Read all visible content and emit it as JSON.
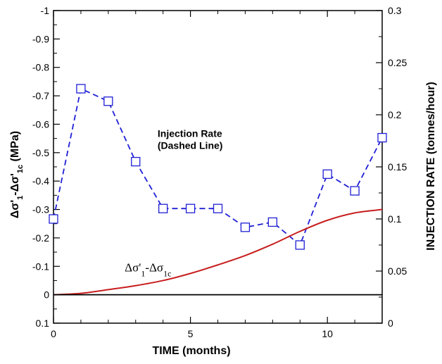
{
  "chart_data": {
    "type": "line",
    "x_axis": {
      "label": "TIME (months)",
      "range": [
        0,
        12
      ],
      "ticks": [
        0,
        5,
        10
      ],
      "tick_labels": [
        "0",
        "5",
        "10"
      ],
      "minor_ticks": [
        1,
        2,
        3,
        4,
        6,
        7,
        8,
        9,
        11
      ]
    },
    "y_left_axis": {
      "label_parts": [
        {
          "text": "Δσ'",
          "sub": "",
          "sup": ""
        },
        {
          "text": "",
          "sub": "1",
          "sup": ""
        },
        {
          "text": "-Δσ'",
          "sub": "",
          "sup": ""
        },
        {
          "text": "",
          "sub": "1c",
          "sup": ""
        },
        {
          "text": " (MPa)",
          "sub": "",
          "sup": ""
        }
      ],
      "range": [
        0.1,
        -1
      ],
      "reversed": true,
      "ticks": [
        0.1,
        0,
        -0.1,
        -0.2,
        -0.3,
        -0.4,
        -0.5,
        -0.6,
        -0.7,
        -0.8,
        -0.9,
        -1
      ],
      "tick_labels": [
        "0.1",
        "0",
        "-0.1",
        "-0.2",
        "-0.3",
        "-0.4",
        "-0.5",
        "-0.6",
        "-0.7",
        "-0.8",
        "-0.9",
        "-1"
      ]
    },
    "y_right_axis": {
      "label": "INJECTION RATE (tonnes/hour)",
      "range": [
        0,
        0.3
      ],
      "ticks": [
        0,
        0.05,
        0.1,
        0.15,
        0.2,
        0.25,
        0.3
      ],
      "tick_labels": [
        "0",
        "0.05",
        "0.1",
        "0.15",
        "0.2",
        "0.25",
        "0.3"
      ]
    },
    "series": [
      {
        "axis": "right",
        "style": "dashed-square-markers",
        "color": "#1f1fd6",
        "x": [
          0,
          1,
          2,
          3,
          4,
          5,
          6,
          7,
          8,
          9,
          10,
          11,
          12
        ],
        "y": [
          0.1,
          0.225,
          0.213,
          0.155,
          0.11,
          0.11,
          0.11,
          0.092,
          0.097,
          0.075,
          0.143,
          0.127,
          0.178
        ]
      },
      {
        "axis": "left",
        "style": "solid",
        "color": "#c81e1e",
        "x": [
          0,
          1,
          2,
          3,
          4,
          5,
          6,
          7,
          8,
          9,
          10,
          11,
          12
        ],
        "y": [
          0,
          -0.005,
          -0.018,
          -0.032,
          -0.05,
          -0.075,
          -0.105,
          -0.138,
          -0.178,
          -0.223,
          -0.262,
          -0.288,
          -0.3
        ]
      },
      {
        "axis": "left",
        "style": "solid",
        "color": "#000000",
        "x": [
          0,
          12
        ],
        "y": [
          0,
          0
        ]
      }
    ],
    "annotations": [
      {
        "lines": [
          "Injection Rate",
          "(Dashed Line)"
        ],
        "x": 3.8,
        "y": -0.555
      },
      {
        "parts": [
          "Δσ'",
          "1",
          "-Δσ",
          "1c"
        ],
        "x": 2.6,
        "y": -0.082
      }
    ],
    "grid": false
  }
}
